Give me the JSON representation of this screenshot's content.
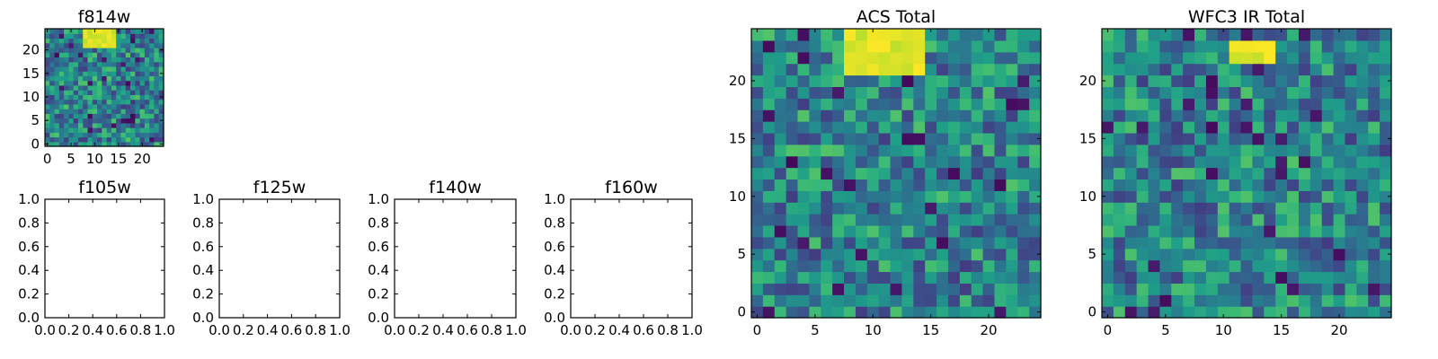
{
  "chart_data": [
    {
      "type": "heatmap",
      "title": "f814w",
      "grid_size": [
        25,
        25
      ],
      "xlim": [
        -0.5,
        24.5
      ],
      "ylim": [
        -0.5,
        24.5
      ],
      "xticks": [
        0,
        5,
        10,
        15,
        20
      ],
      "yticks": [
        0,
        5,
        10,
        15,
        20
      ],
      "colormap": "viridis",
      "bright_region": {
        "x": [
          8,
          14
        ],
        "y": [
          21,
          24
        ]
      }
    },
    {
      "type": "empty",
      "title": "f105w",
      "xlim": [
        0,
        1
      ],
      "ylim": [
        0,
        1
      ],
      "xticks": [
        "0.0",
        "0.2",
        "0.4",
        "0.6",
        "0.8",
        "1.0"
      ],
      "yticks": [
        "0.0",
        "0.2",
        "0.4",
        "0.6",
        "0.8",
        "1.0"
      ]
    },
    {
      "type": "empty",
      "title": "f125w",
      "xlim": [
        0,
        1
      ],
      "ylim": [
        0,
        1
      ],
      "xticks": [
        "0.0",
        "0.2",
        "0.4",
        "0.6",
        "0.8",
        "1.0"
      ],
      "yticks": [
        "0.0",
        "0.2",
        "0.4",
        "0.6",
        "0.8",
        "1.0"
      ]
    },
    {
      "type": "empty",
      "title": "f140w",
      "xlim": [
        0,
        1
      ],
      "ylim": [
        0,
        1
      ],
      "xticks": [
        "0.0",
        "0.2",
        "0.4",
        "0.6",
        "0.8",
        "1.0"
      ],
      "yticks": [
        "0.0",
        "0.2",
        "0.4",
        "0.6",
        "0.8",
        "1.0"
      ]
    },
    {
      "type": "empty",
      "title": "f160w",
      "xlim": [
        0,
        1
      ],
      "ylim": [
        0,
        1
      ],
      "xticks": [
        "0.0",
        "0.2",
        "0.4",
        "0.6",
        "0.8",
        "1.0"
      ],
      "yticks": [
        "0.0",
        "0.2",
        "0.4",
        "0.6",
        "0.8",
        "1.0"
      ]
    },
    {
      "type": "heatmap",
      "title": "ACS Total",
      "grid_size": [
        25,
        25
      ],
      "xlim": [
        -0.5,
        24.5
      ],
      "ylim": [
        -0.5,
        24.5
      ],
      "xticks": [
        0,
        5,
        10,
        15,
        20
      ],
      "yticks": [
        0,
        5,
        10,
        15,
        20
      ],
      "colormap": "viridis",
      "bright_region": {
        "x": [
          8,
          14
        ],
        "y": [
          21,
          24
        ]
      }
    },
    {
      "type": "heatmap",
      "title": "WFC3 IR Total",
      "grid_size": [
        25,
        25
      ],
      "xlim": [
        -0.5,
        24.5
      ],
      "ylim": [
        -0.5,
        24.5
      ],
      "xticks": [
        0,
        5,
        10,
        15,
        20
      ],
      "yticks": [
        0,
        5,
        10,
        15,
        20
      ],
      "colormap": "viridis",
      "bright_region": {
        "x": [
          11,
          14
        ],
        "y": [
          22,
          23
        ]
      }
    }
  ],
  "colors": {
    "viridis_low": "#440154",
    "viridis_mid": "#21918c",
    "viridis_high": "#fde725"
  }
}
